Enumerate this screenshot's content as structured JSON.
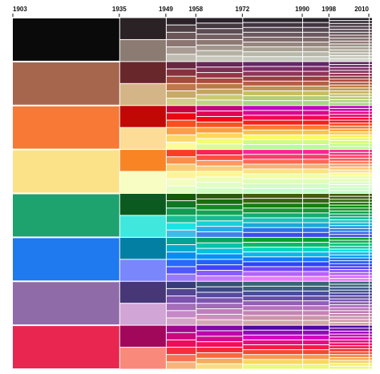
{
  "chart_data": {
    "type": "crayon-timeline",
    "xlim": [
      1903,
      2010
    ],
    "xticks": [
      1903,
      1935,
      1949,
      1958,
      1972,
      1990,
      1998,
      2010
    ],
    "colors": [
      "#0a0a0a",
      "#a8664f",
      "#f87a34",
      "#fbe38a",
      "#1fa56f",
      "#1f78f0",
      "#8e6aa8",
      "#e8254e"
    ]
  }
}
